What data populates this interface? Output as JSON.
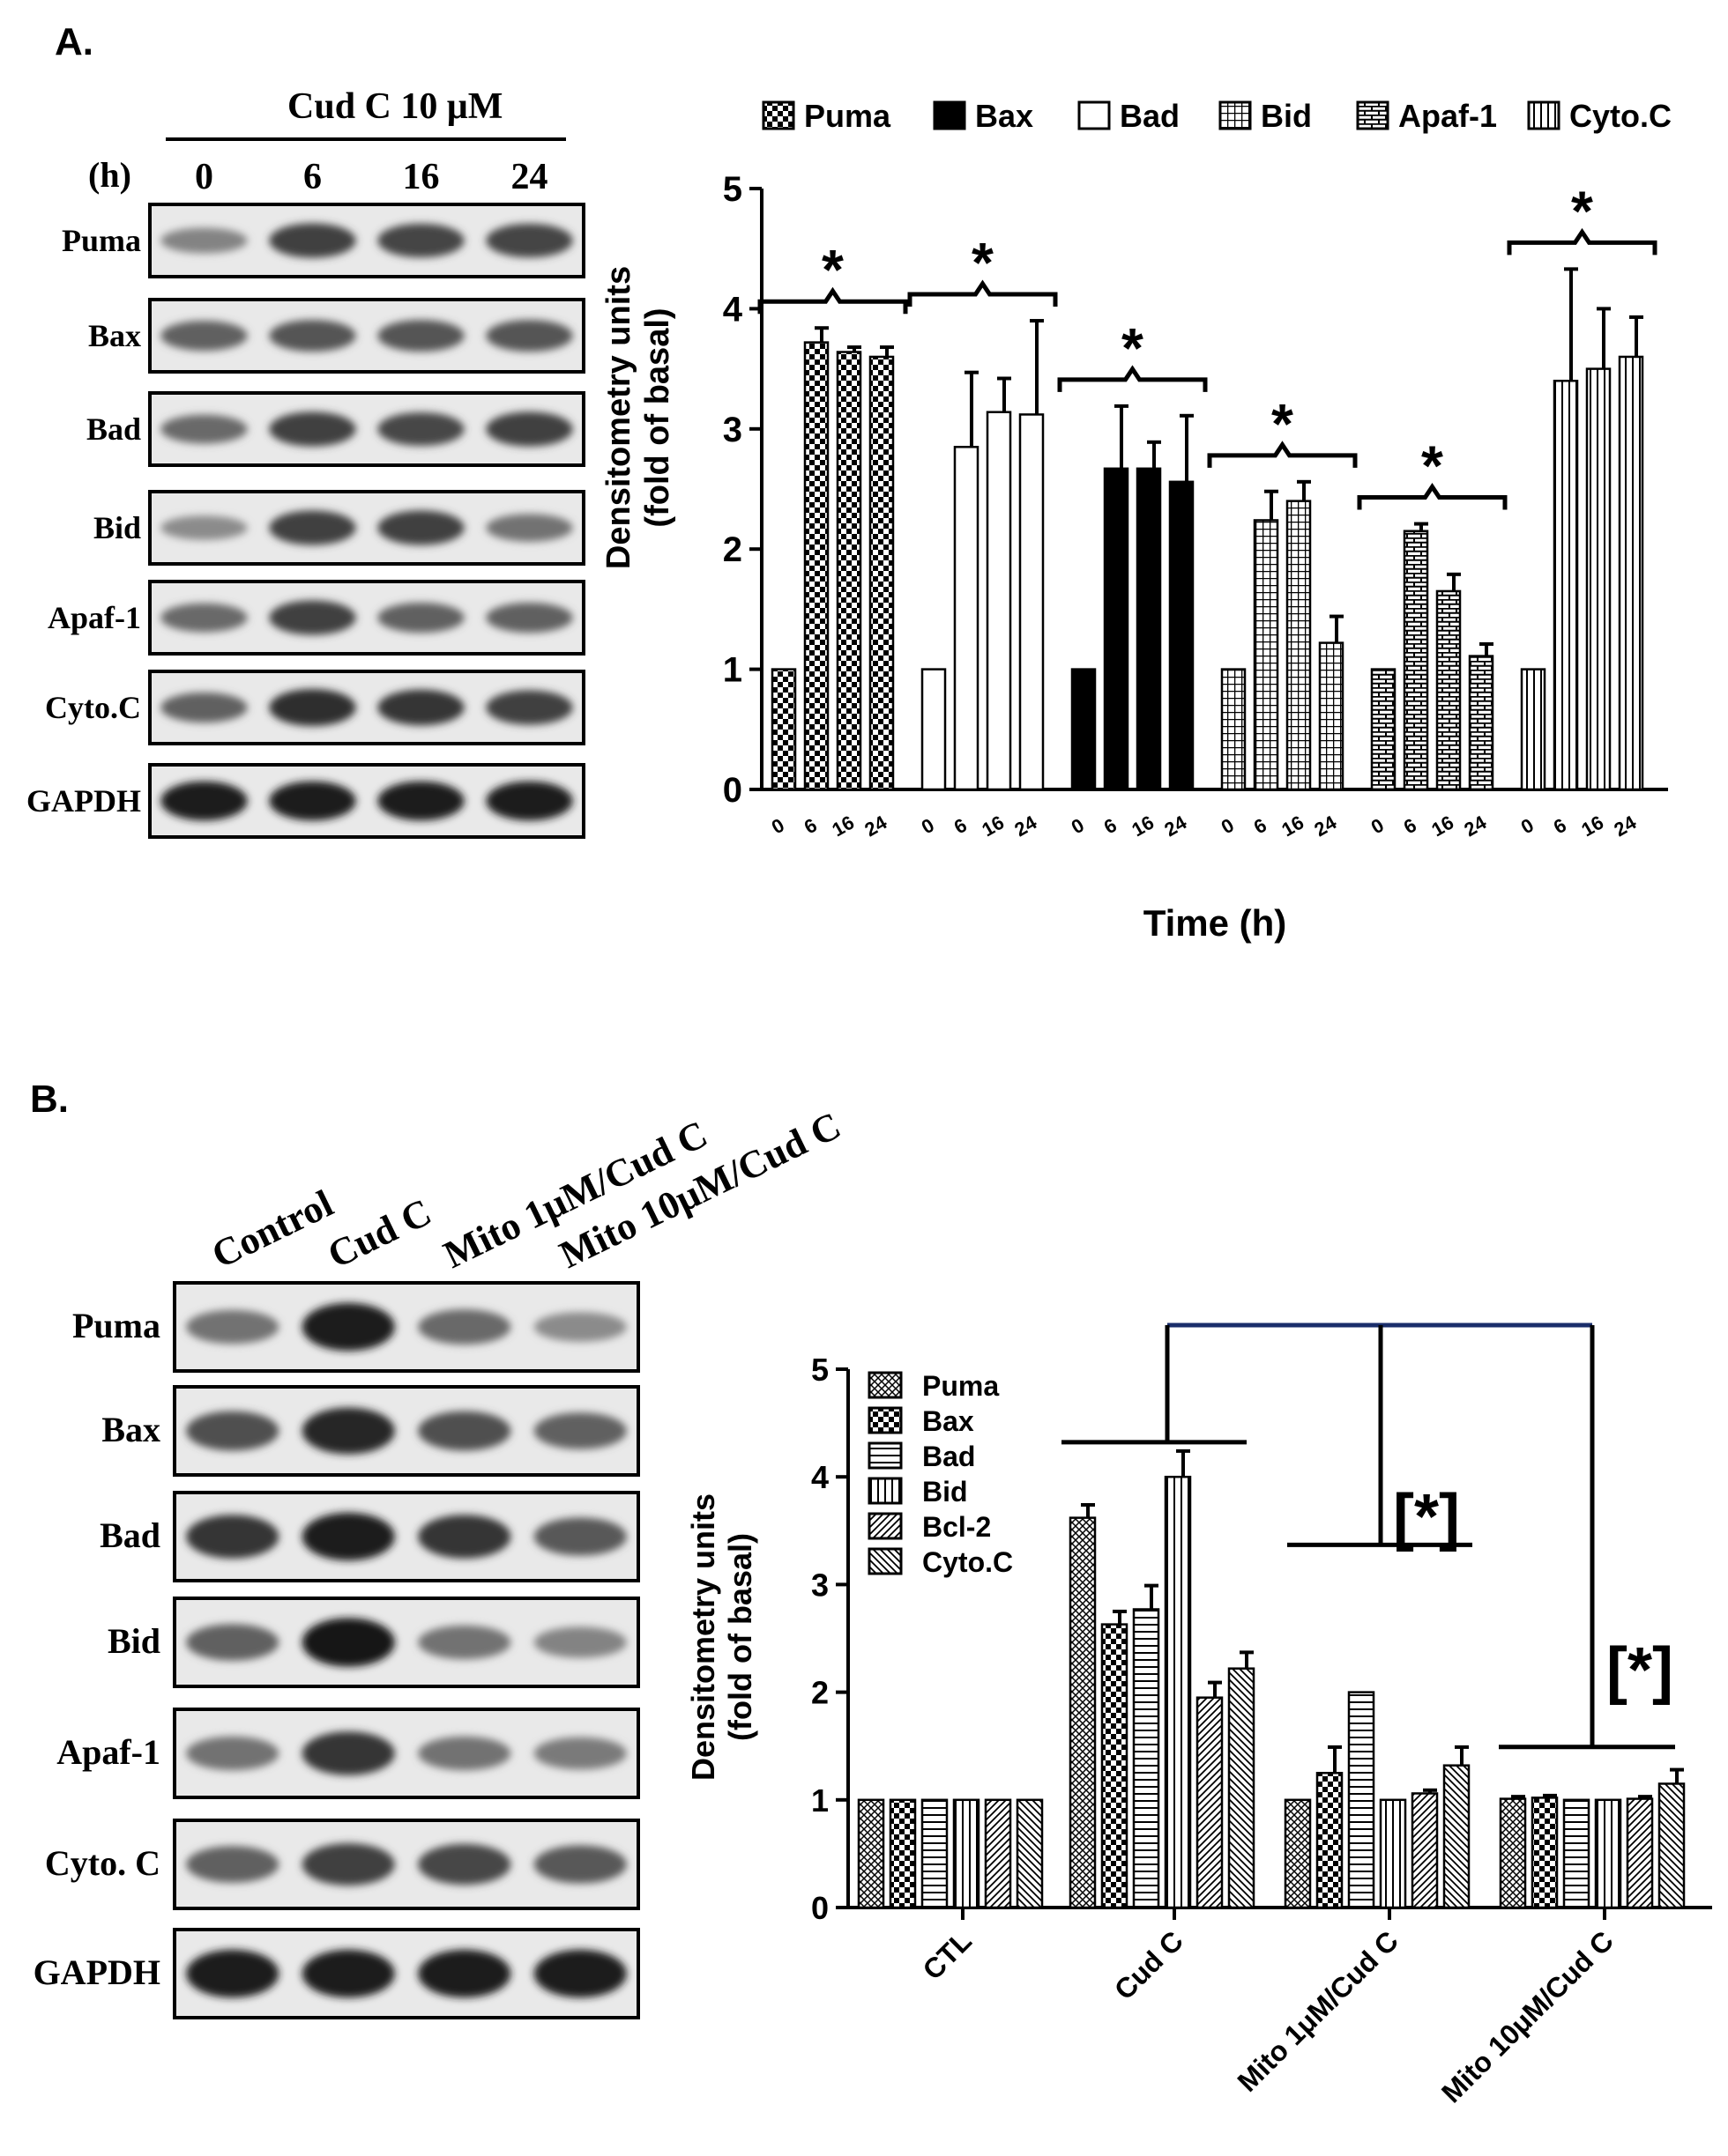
{
  "figure": {
    "panel_a_label": "A.",
    "panel_b_label": "B.",
    "blot_a": {
      "treatment": "Cud C 10 μM",
      "time_unit": "(h)",
      "lanes": [
        "0",
        "6",
        "16",
        "24"
      ],
      "rows": [
        {
          "label": "Puma",
          "intensity": [
            0.35,
            0.75,
            0.72,
            0.72
          ]
        },
        {
          "label": "Bax",
          "intensity": [
            0.55,
            0.62,
            0.62,
            0.62
          ]
        },
        {
          "label": "Bad",
          "intensity": [
            0.5,
            0.75,
            0.7,
            0.75
          ]
        },
        {
          "label": "Bid",
          "intensity": [
            0.3,
            0.75,
            0.75,
            0.45
          ]
        },
        {
          "label": "Apaf-1",
          "intensity": [
            0.5,
            0.75,
            0.55,
            0.55
          ]
        },
        {
          "label": "Cyto.C",
          "intensity": [
            0.55,
            0.85,
            0.8,
            0.75
          ]
        },
        {
          "label": "GAPDH",
          "intensity": [
            0.95,
            0.95,
            0.95,
            0.95
          ]
        }
      ]
    },
    "blot_b": {
      "lanes": [
        "Control",
        "Cud C",
        "Mito 1μM/Cud C",
        "Mito 10μM/Cud C"
      ],
      "rows": [
        {
          "label": "Puma",
          "intensity": [
            0.45,
            0.95,
            0.5,
            0.3
          ]
        },
        {
          "label": "Bax",
          "intensity": [
            0.65,
            0.9,
            0.65,
            0.55
          ]
        },
        {
          "label": "Bad",
          "intensity": [
            0.8,
            0.95,
            0.8,
            0.6
          ]
        },
        {
          "label": "Bid",
          "intensity": [
            0.55,
            0.98,
            0.45,
            0.35
          ]
        },
        {
          "label": "Apaf-1",
          "intensity": [
            0.45,
            0.8,
            0.45,
            0.4
          ]
        },
        {
          "label": "Cyto. C",
          "intensity": [
            0.55,
            0.75,
            0.7,
            0.6
          ]
        },
        {
          "label": "GAPDH",
          "intensity": [
            0.95,
            0.95,
            0.95,
            0.95
          ]
        }
      ]
    },
    "colors": {
      "ink": "#000000",
      "bracket_top": "#1a2e6b"
    }
  },
  "chart_data": [
    {
      "type": "bar",
      "xlabel": "Time (h)",
      "ylabel": "Densitometry units\n(fold of basal)",
      "ylim": [
        0,
        5
      ],
      "yticks": [
        "0",
        "1",
        "2",
        "3",
        "4",
        "5"
      ],
      "legend_position": "top",
      "categories": [
        "0",
        "6",
        "16",
        "24"
      ],
      "significance": "*",
      "series": [
        {
          "name": "Puma",
          "pattern": "check",
          "values": [
            1.0,
            3.72,
            3.64,
            3.6
          ],
          "errors": [
            0,
            0.12,
            0.04,
            0.08
          ]
        },
        {
          "name": "Bad",
          "pattern": "open",
          "values": [
            1.0,
            2.85,
            3.14,
            3.12
          ],
          "errors": [
            0,
            0.62,
            0.28,
            0.78
          ]
        },
        {
          "name": "Bax",
          "pattern": "solid",
          "values": [
            1.0,
            2.67,
            2.67,
            2.56
          ],
          "errors": [
            0,
            0.52,
            0.22,
            0.55
          ]
        },
        {
          "name": "Bid",
          "pattern": "grid",
          "values": [
            1.0,
            2.24,
            2.4,
            1.22
          ],
          "errors": [
            0,
            0.24,
            0.16,
            0.22
          ]
        },
        {
          "name": "Apaf-1",
          "pattern": "brick",
          "values": [
            1.0,
            2.15,
            1.65,
            1.11
          ],
          "errors": [
            0,
            0.06,
            0.14,
            0.1
          ]
        },
        {
          "name": "Cyto.C",
          "pattern": "vlines",
          "values": [
            1.0,
            3.4,
            3.5,
            3.6
          ],
          "errors": [
            0,
            0.93,
            0.5,
            0.33
          ]
        }
      ]
    },
    {
      "type": "bar",
      "xlabel": "",
      "ylabel": "Densitometry units\n(fold of basal)",
      "ylim": [
        0,
        5
      ],
      "yticks": [
        "0",
        "1",
        "2",
        "3",
        "4",
        "5"
      ],
      "legend_position": "top-left",
      "categories": [
        "CTL",
        "Cud C",
        "Mito 1μM/Cud C",
        "Mito 10μM/Cud C"
      ],
      "significance": "[*]",
      "series": [
        {
          "name": "Puma",
          "pattern": "crosshatch",
          "values": [
            1.0,
            3.62,
            1.0,
            1.01
          ],
          "errors": [
            0,
            0.12,
            0,
            0.02
          ]
        },
        {
          "name": "Bax",
          "pattern": "check",
          "values": [
            1.0,
            2.63,
            1.25,
            1.02
          ],
          "errors": [
            0,
            0.12,
            0.24,
            0.02
          ]
        },
        {
          "name": "Bad",
          "pattern": "hlines",
          "values": [
            1.0,
            2.77,
            2.0,
            1.0
          ],
          "errors": [
            0,
            0.22,
            0,
            0
          ]
        },
        {
          "name": "Bid",
          "pattern": "vlines",
          "values": [
            1.0,
            4.0,
            1.0,
            1.0
          ],
          "errors": [
            0,
            0.24,
            0,
            0
          ]
        },
        {
          "name": "Bcl-2",
          "pattern": "diag",
          "values": [
            1.0,
            1.95,
            1.06,
            1.01
          ],
          "errors": [
            0,
            0.14,
            0.03,
            0.02
          ]
        },
        {
          "name": "Cyto.C",
          "pattern": "diag2",
          "values": [
            1.0,
            2.22,
            1.32,
            1.15
          ],
          "errors": [
            0,
            0.15,
            0.17,
            0.13
          ]
        }
      ]
    }
  ]
}
